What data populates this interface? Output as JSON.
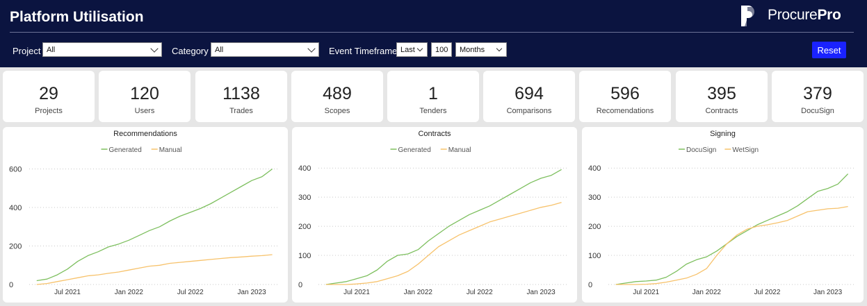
{
  "header": {
    "title": "Platform Utilisation",
    "logo": {
      "text_a": "Procure",
      "text_b": "Pro"
    }
  },
  "filters": {
    "project": {
      "label": "Project",
      "value": "All"
    },
    "category": {
      "label": "Category",
      "value": "All"
    },
    "timeframe": {
      "label": "Event Timeframe",
      "mode": "Last",
      "count": "100",
      "unit": "Months"
    },
    "reset_label": "Reset"
  },
  "kpis": [
    {
      "value": "29",
      "label": "Projects"
    },
    {
      "value": "120",
      "label": "Users"
    },
    {
      "value": "1138",
      "label": "Trades"
    },
    {
      "value": "489",
      "label": "Scopes"
    },
    {
      "value": "1",
      "label": "Tenders"
    },
    {
      "value": "694",
      "label": "Comparisons"
    },
    {
      "value": "596",
      "label": "Recomendations"
    },
    {
      "value": "395",
      "label": "Contracts"
    },
    {
      "value": "379",
      "label": "DocuSign"
    }
  ],
  "colors": {
    "green": "#7dbf5e",
    "orange": "#f7c26b",
    "header": "#0b1440",
    "accent": "#1a22ff"
  },
  "chart_data": [
    {
      "type": "line",
      "title": "Recommendations",
      "legend": "top-center",
      "x_ticks": [
        "Jul 2021",
        "Jan 2022",
        "Jul 2022",
        "Jan 2023"
      ],
      "y_ticks": [
        0,
        200,
        400,
        600
      ],
      "ylim": [
        0,
        620
      ],
      "grid": "horizontal-dotted",
      "x": [
        "2021-04",
        "2021-05",
        "2021-06",
        "2021-07",
        "2021-08",
        "2021-09",
        "2021-10",
        "2021-11",
        "2021-12",
        "2022-01",
        "2022-02",
        "2022-03",
        "2022-04",
        "2022-05",
        "2022-06",
        "2022-07",
        "2022-08",
        "2022-09",
        "2022-10",
        "2022-11",
        "2022-12",
        "2023-01",
        "2023-02",
        "2023-03"
      ],
      "series": [
        {
          "name": "Generated",
          "color": "#7dbf5e",
          "values": [
            20,
            28,
            50,
            80,
            120,
            150,
            170,
            195,
            210,
            230,
            255,
            280,
            300,
            330,
            355,
            375,
            395,
            420,
            450,
            480,
            510,
            540,
            560,
            600
          ]
        },
        {
          "name": "Manual",
          "color": "#f7c26b",
          "values": [
            0,
            5,
            15,
            25,
            35,
            45,
            50,
            58,
            65,
            75,
            85,
            95,
            100,
            110,
            115,
            120,
            125,
            130,
            135,
            140,
            143,
            147,
            150,
            155
          ]
        }
      ]
    },
    {
      "type": "line",
      "title": "Contracts",
      "legend": "top-center",
      "x_ticks": [
        "Jul 2021",
        "Jan 2022",
        "Jul 2022",
        "Jan 2023"
      ],
      "y_ticks": [
        0,
        100,
        200,
        300,
        400
      ],
      "ylim": [
        0,
        410
      ],
      "grid": "horizontal-dotted",
      "x": [
        "2021-04",
        "2021-05",
        "2021-06",
        "2021-07",
        "2021-08",
        "2021-09",
        "2021-10",
        "2021-11",
        "2021-12",
        "2022-01",
        "2022-02",
        "2022-03",
        "2022-04",
        "2022-05",
        "2022-06",
        "2022-07",
        "2022-08",
        "2022-09",
        "2022-10",
        "2022-11",
        "2022-12",
        "2023-01",
        "2023-02",
        "2023-03"
      ],
      "series": [
        {
          "name": "Generated",
          "color": "#7dbf5e",
          "values": [
            0,
            5,
            10,
            20,
            30,
            50,
            80,
            100,
            105,
            120,
            150,
            175,
            200,
            220,
            240,
            255,
            270,
            290,
            310,
            330,
            350,
            365,
            375,
            395
          ]
        },
        {
          "name": "Manual",
          "color": "#f7c26b",
          "values": [
            0,
            0,
            0,
            2,
            5,
            10,
            20,
            30,
            45,
            70,
            100,
            130,
            150,
            170,
            185,
            200,
            215,
            225,
            235,
            245,
            255,
            265,
            272,
            282
          ]
        }
      ]
    },
    {
      "type": "line",
      "title": "Signing",
      "legend": "top-center",
      "x_ticks": [
        "Jul 2021",
        "Jan 2022",
        "Jul 2022",
        "Jan 2023"
      ],
      "y_ticks": [
        0,
        100,
        200,
        300,
        400
      ],
      "ylim": [
        0,
        410
      ],
      "grid": "horizontal-dotted",
      "x": [
        "2021-04",
        "2021-05",
        "2021-06",
        "2021-07",
        "2021-08",
        "2021-09",
        "2021-10",
        "2021-11",
        "2021-12",
        "2022-01",
        "2022-02",
        "2022-03",
        "2022-04",
        "2022-05",
        "2022-06",
        "2022-07",
        "2022-08",
        "2022-09",
        "2022-10",
        "2022-11",
        "2022-12",
        "2023-01",
        "2023-02",
        "2023-03"
      ],
      "series": [
        {
          "name": "DocuSign",
          "color": "#7dbf5e",
          "values": [
            0,
            5,
            10,
            12,
            15,
            25,
            45,
            70,
            85,
            95,
            115,
            140,
            165,
            185,
            205,
            220,
            235,
            250,
            270,
            295,
            320,
            330,
            345,
            380
          ]
        },
        {
          "name": "WetSign",
          "color": "#f7c26b",
          "values": [
            0,
            0,
            0,
            1,
            3,
            8,
            15,
            22,
            35,
            55,
            100,
            140,
            170,
            190,
            200,
            205,
            212,
            220,
            235,
            250,
            255,
            260,
            262,
            268
          ]
        }
      ]
    }
  ]
}
